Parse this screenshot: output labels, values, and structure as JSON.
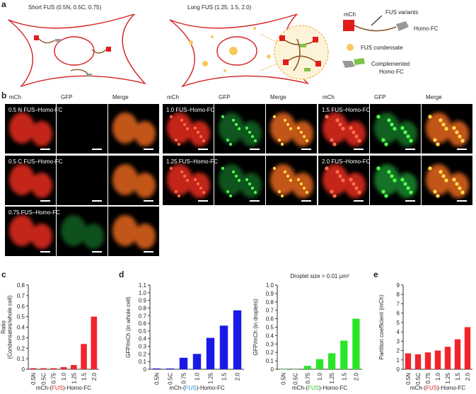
{
  "panel_labels": [
    "a",
    "b",
    "c",
    "d",
    "e"
  ],
  "panel_a": {
    "short_label": "Short FUS (0.5N, 0.5C, 0.75)",
    "long_label": "Long FUS (1.25, 1.5, 2.0)",
    "legend": {
      "mch": "mCh",
      "fus_variants": "FUS variants",
      "homo_fc": "Homo-FC",
      "condensate": "FUS condensate",
      "complemented": [
        "Complemented",
        "Homo-FC"
      ]
    }
  },
  "panel_b": {
    "groups": [
      {
        "headers": [
          "mCh",
          "GFP",
          "Merge"
        ],
        "rows": [
          "0.5 N FUS–Homo-FC",
          "0.5 C FUS–Homo-FC",
          "0.75 FUS–Homo-FC"
        ]
      },
      {
        "headers": [
          "mCh",
          "GFP",
          "Merge"
        ],
        "rows": [
          "1.0 FUS–Homo-FC",
          "1.25 FUS–Homo-FC"
        ]
      },
      {
        "headers": [
          "mCh",
          "GFP",
          "Merge"
        ],
        "rows": [
          "1.5 FUS–Homo-FC",
          "2.0 FUS–Homo-FC"
        ]
      }
    ]
  },
  "chart_data": [
    {
      "type": "bar",
      "ylabel": [
        "Ratio",
        "(Condensates/whole cell)"
      ],
      "xlabel": [
        "mCh-(",
        "FUS",
        ")-Homo-FC"
      ],
      "xlabel_color": "#e8211f",
      "categories": [
        "0.5N",
        "0.5C",
        "0.75",
        "1.0",
        "1.25",
        "1.5",
        "2.0"
      ],
      "values": [
        0.01,
        0.01,
        0.01,
        0.02,
        0.04,
        0.24,
        0.5
      ],
      "color": "#f2242a",
      "ylim": [
        0,
        0.8
      ],
      "yticks": [
        0,
        0.1,
        0.2,
        0.3,
        0.4,
        0.5,
        0.6,
        0.7,
        0.8
      ]
    },
    {
      "type": "bar",
      "ylabel": [
        "GFP/mCh (in whole cell)"
      ],
      "xlabel": [
        "mCh-(",
        "FUS",
        ")-Homo-FC"
      ],
      "xlabel_color": "#2d8fd6",
      "categories": [
        "0.5N",
        "0.5C",
        "0.75",
        "1.0",
        "1.25",
        "1.5",
        "2.0"
      ],
      "values": [
        0.01,
        0.01,
        0.15,
        0.2,
        0.41,
        0.57,
        0.77
      ],
      "color": "#1a1ae6",
      "ylim": [
        0,
        1.1
      ],
      "yticks": [
        0,
        0.1,
        0.2,
        0.3,
        0.4,
        0.5,
        0.6,
        0.7,
        0.8,
        0.9,
        {
          "value": 1,
          "label": "1.0"
        },
        1.1
      ]
    },
    {
      "type": "bar",
      "title": "Droplet size > 0.01 μm²",
      "ylabel": [
        "GFP/mCh (in droplets)"
      ],
      "xlabel": [
        "mCh-(",
        "FUS",
        ")-Homo-FC"
      ],
      "xlabel_color": "#2ec12e",
      "categories": [
        "0.5N",
        "0.5C",
        "0.75",
        "1.0",
        "1.25",
        "1.5",
        "2.0"
      ],
      "values": [
        0,
        0,
        0.04,
        0.12,
        0.19,
        0.34,
        0.6
      ],
      "color": "#29e629",
      "ylim": [
        0,
        1
      ],
      "yticks": [
        0,
        0.1,
        0.2,
        0.3,
        0.4,
        0.5,
        0.6,
        0.7,
        0.8,
        0.9,
        {
          "value": 1,
          "label": "1.0"
        }
      ]
    },
    {
      "type": "bar",
      "ylabel": [
        "Partition coefficient (mCh)"
      ],
      "xlabel": [
        "mCh-(",
        "FUS",
        ")-Homo-FC"
      ],
      "xlabel_color": "#e8211f",
      "categories": [
        "0.5N",
        "0.5C",
        "0.75",
        "1.0",
        "1.25",
        "1.5",
        "2.0"
      ],
      "values": [
        1.7,
        1.6,
        1.8,
        2.0,
        2.4,
        3.2,
        4.5
      ],
      "color": "#f2242a",
      "ylim": [
        0,
        9
      ],
      "yticks": [
        0,
        1,
        2,
        3,
        4,
        5,
        6,
        7,
        8,
        9
      ]
    }
  ]
}
